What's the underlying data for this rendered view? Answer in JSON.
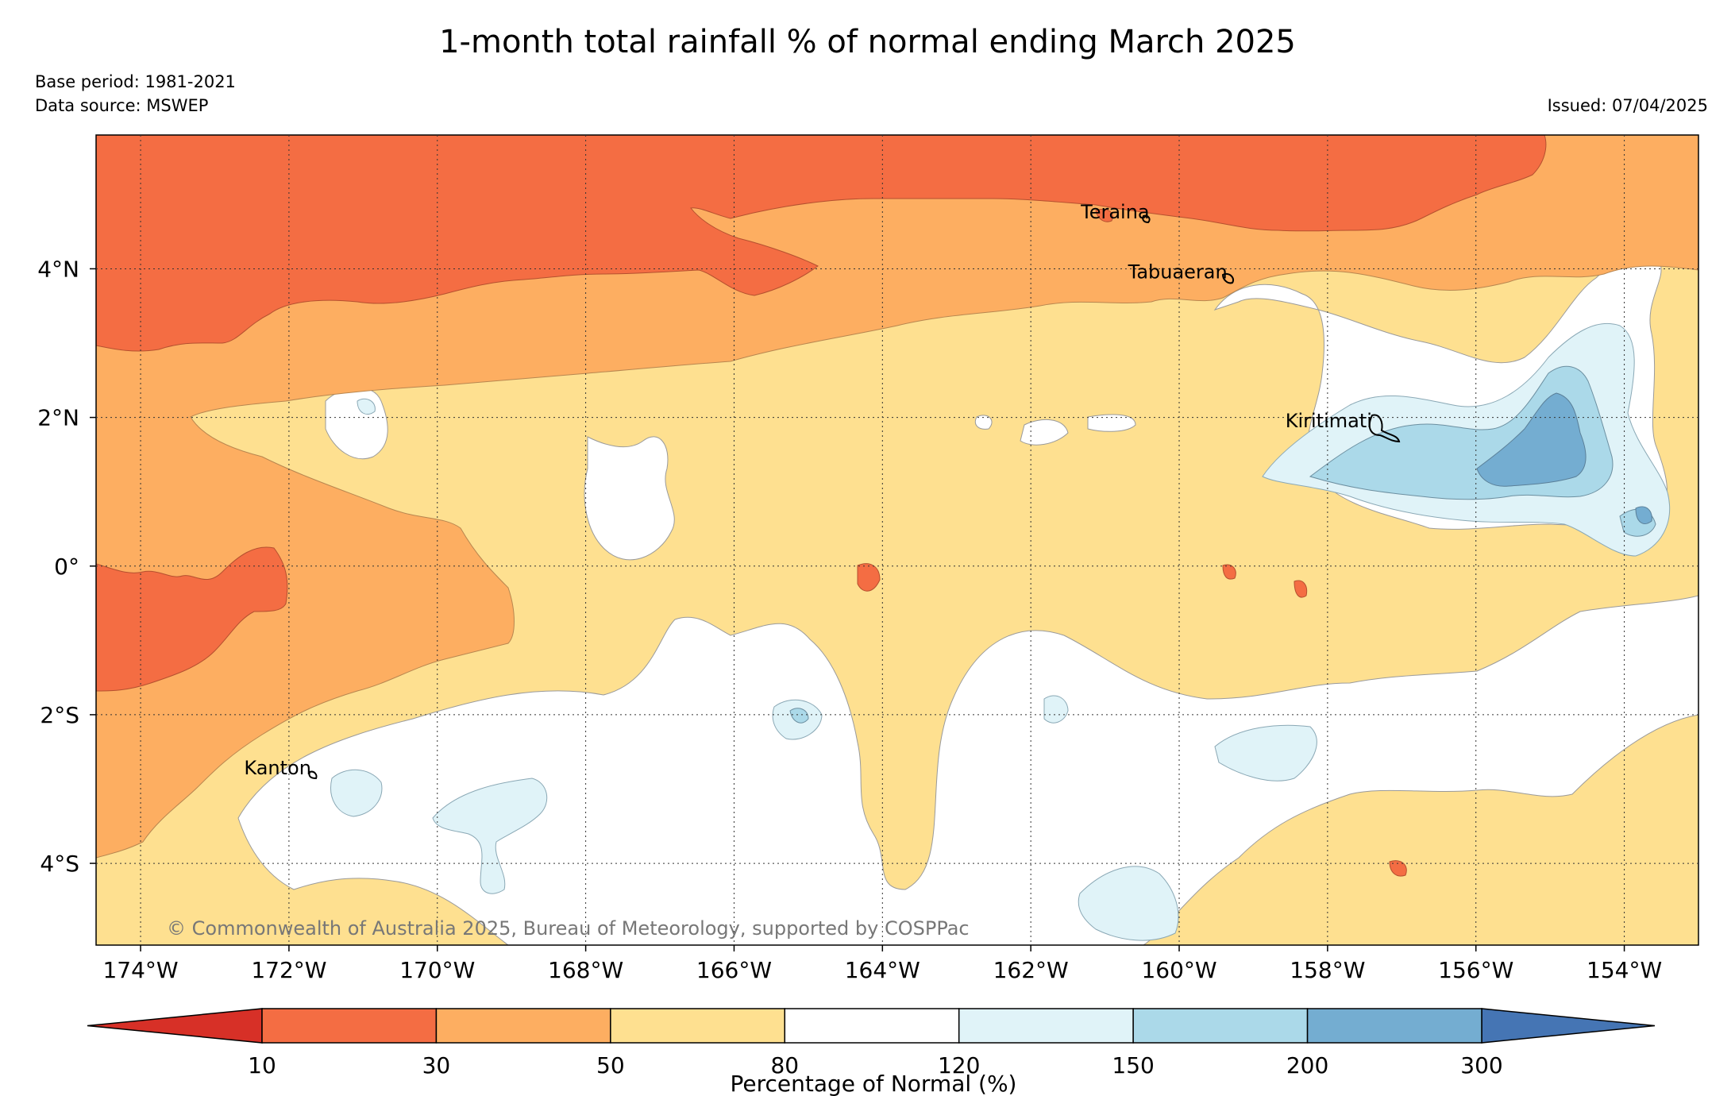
{
  "title": "1-month total rainfall % of normal ending March 2025",
  "base_period": "Base period: 1981-2021",
  "data_source": "Data source: MSWEP",
  "issued": "Issued: 07/04/2025",
  "copyright": "© Commonwealth of Australia 2025, Bureau of Meteorology, supported by COSPPac",
  "map": {
    "lon_range": [
      -174.6,
      -153.0
    ],
    "lat_range": [
      -5.1,
      5.8
    ],
    "lon_ticks": [
      {
        "value": -174,
        "label": "174°W"
      },
      {
        "value": -172,
        "label": "172°W"
      },
      {
        "value": -170,
        "label": "170°W"
      },
      {
        "value": -168,
        "label": "168°W"
      },
      {
        "value": -166,
        "label": "166°W"
      },
      {
        "value": -164,
        "label": "164°W"
      },
      {
        "value": -162,
        "label": "162°W"
      },
      {
        "value": -160,
        "label": "160°W"
      },
      {
        "value": -158,
        "label": "158°W"
      },
      {
        "value": -156,
        "label": "156°W"
      },
      {
        "value": -154,
        "label": "154°W"
      }
    ],
    "lat_ticks": [
      {
        "value": 4,
        "label": "4°N"
      },
      {
        "value": 2,
        "label": "2°N"
      },
      {
        "value": 0,
        "label": "0°"
      },
      {
        "value": -2,
        "label": "2°S"
      },
      {
        "value": -4,
        "label": "4°S"
      }
    ],
    "places": [
      {
        "name": "Teraina",
        "lon": -160.4,
        "lat": 4.68
      },
      {
        "name": "Tabuaeran",
        "lon": -159.35,
        "lat": 3.87
      },
      {
        "name": "Kiritimati",
        "lon": -157.4,
        "lat": 1.87
      },
      {
        "name": "Kanton",
        "lon": -171.7,
        "lat": -2.8
      }
    ]
  },
  "colorbar": {
    "label": "Percentage of Normal (%)",
    "boundaries": [
      "10",
      "30",
      "50",
      "80",
      "120",
      "150",
      "200",
      "300"
    ],
    "under_color": "#d73027",
    "over_color": "#4575b4",
    "colors": [
      "#f46d43",
      "#fdae61",
      "#fee090",
      "#ffffff",
      "#e0f3f8",
      "#abd9e9",
      "#74add1"
    ]
  }
}
